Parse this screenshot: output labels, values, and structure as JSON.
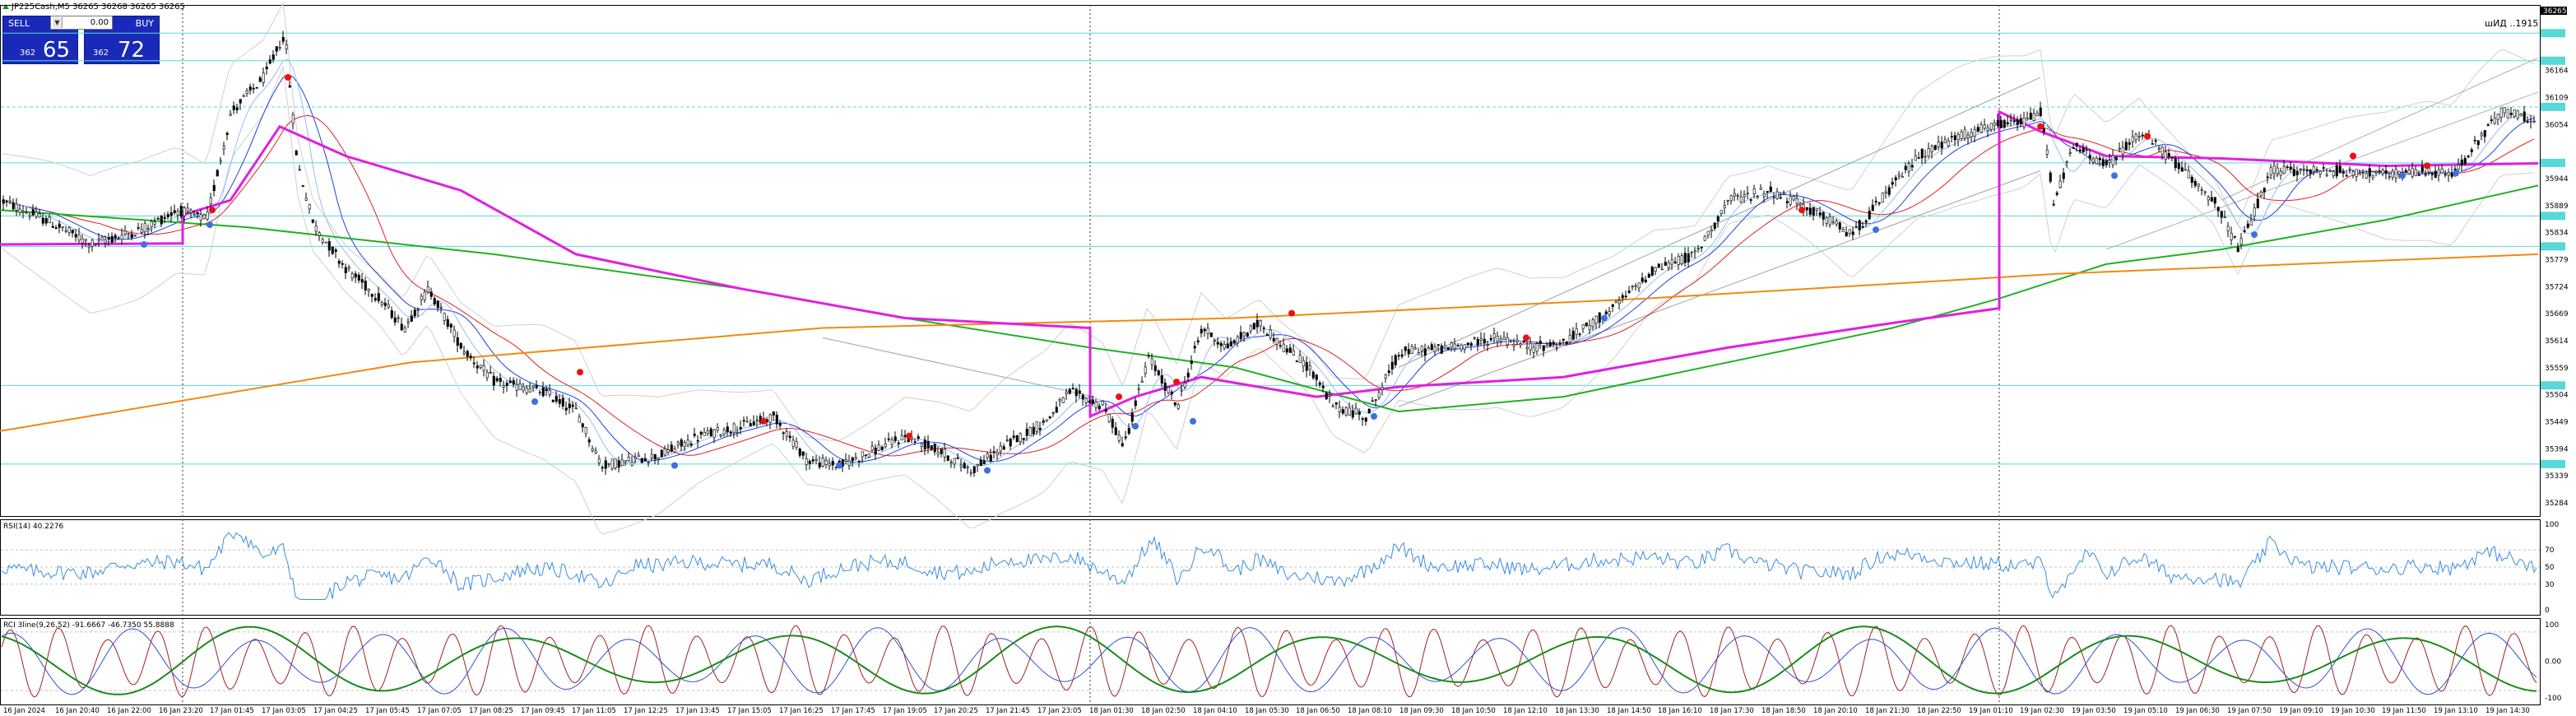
{
  "header": {
    "symbol_line": "JP225Cash,M5  36265 36268 36265 36265",
    "watermark": "шИД ..1915"
  },
  "one_click": {
    "sell_label": "SELL",
    "buy_label": "BUY",
    "volume": "0.00",
    "sell_small": "362",
    "sell_big": "65",
    "buy_small": "362",
    "buy_big": "72"
  },
  "price_axis": {
    "labels": [
      "36164",
      "36109",
      "36054",
      "35944",
      "35889",
      "35834",
      "35779",
      "35724",
      "35669",
      "35614",
      "35559",
      "35504",
      "35449",
      "35394",
      "35339",
      "35284"
    ],
    "range": [
      35284,
      36274
    ],
    "top_tag": "36265"
  },
  "rsi_panel": {
    "title": "RSI(14) 40.2276",
    "levels": [
      "100",
      "70",
      "50",
      "30",
      "0"
    ]
  },
  "rci_panel": {
    "title": "RCI 3line(9,26,52) -91.6667 -46.7350 55.8888",
    "levels": [
      "100",
      "0.00",
      "-100"
    ]
  },
  "time_axis": [
    "16 Jan 2024",
    "16 Jan 20:40",
    "16 Jan 22:00",
    "16 Jan 23:20",
    "17 Jan 01:45",
    "17 Jan 03:05",
    "17 Jan 04:25",
    "17 Jan 05:45",
    "17 Jan 07:05",
    "17 Jan 08:25",
    "17 Jan 09:45",
    "17 Jan 11:05",
    "17 Jan 12:25",
    "17 Jan 13:45",
    "17 Jan 15:05",
    "17 Jan 16:25",
    "17 Jan 17:45",
    "17 Jan 19:05",
    "17 Jan 20:25",
    "17 Jan 21:45",
    "17 Jan 23:05",
    "18 Jan 01:30",
    "18 Jan 02:50",
    "18 Jan 04:10",
    "18 Jan 05:30",
    "18 Jan 06:50",
    "18 Jan 08:10",
    "18 Jan 09:30",
    "18 Jan 10:50",
    "18 Jan 12:10",
    "18 Jan 13:30",
    "18 Jan 14:50",
    "18 Jan 16:10",
    "18 Jan 17:30",
    "18 Jan 18:50",
    "18 Jan 20:10",
    "18 Jan 21:30",
    "18 Jan 22:50",
    "19 Jan 01:10",
    "19 Jan 02:30",
    "19 Jan 03:50",
    "19 Jan 05:10",
    "19 Jan 06:30",
    "19 Jan 07:50",
    "19 Jan 09:10",
    "19 Jan 10:30",
    "19 Jan 11:50",
    "19 Jan 13:10",
    "19 Jan 14:30"
  ],
  "colors": {
    "candle": "#000000",
    "vwap": "#e020e0",
    "ma_long": "#22b022",
    "ma_orange": "#f08a10",
    "band": "#d0d0d0",
    "ma_red": "#e02020",
    "ma_blue": "#2040e0",
    "hline": "#58d8d8",
    "sell_bg": "#1a2ab8"
  }
}
